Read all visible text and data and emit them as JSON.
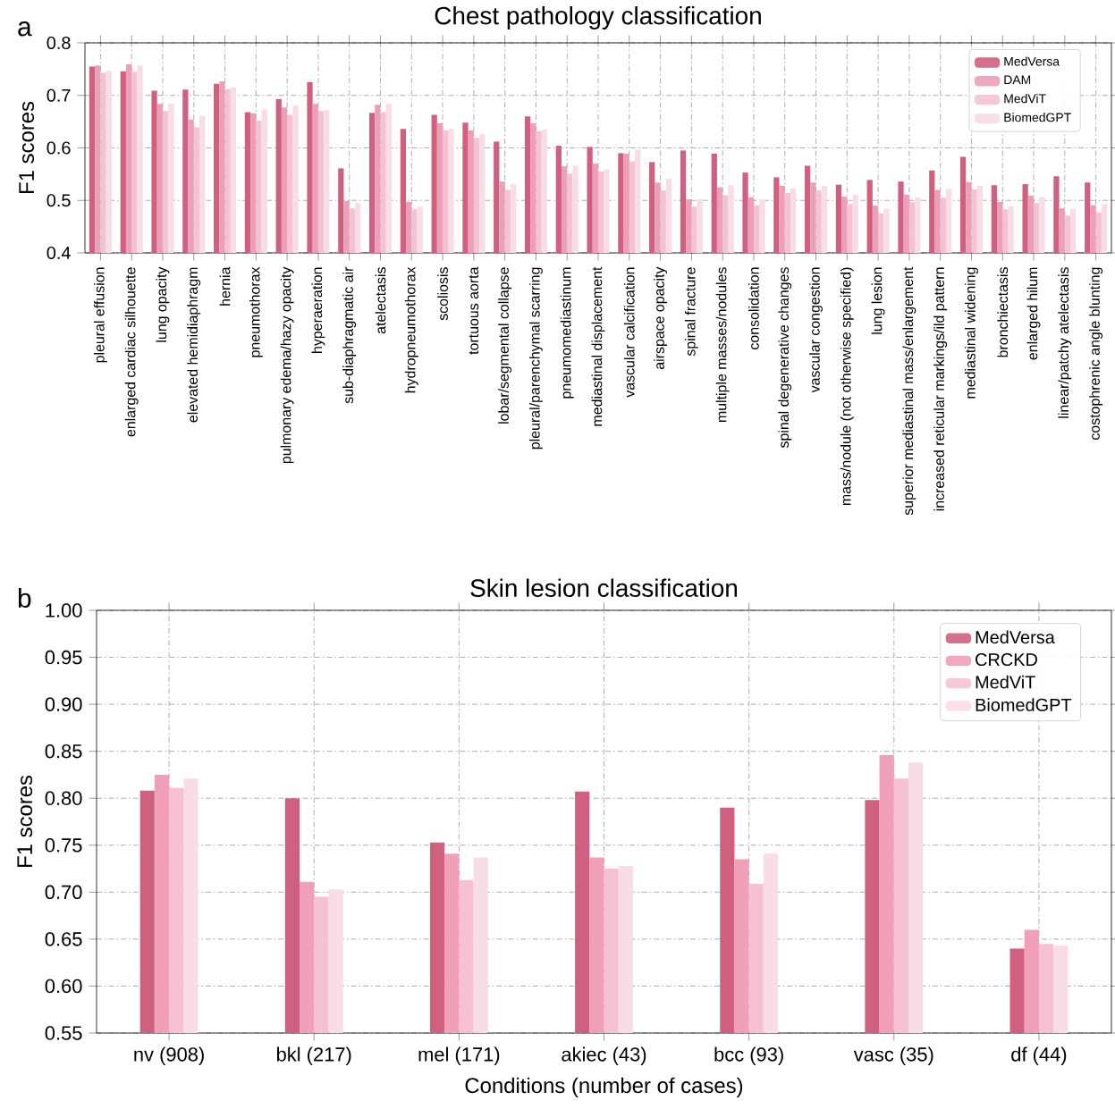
{
  "chart_data": [
    {
      "type": "bar",
      "title": "Chest pathology classification",
      "ylabel": "F1 scores",
      "annotations": [
        "a"
      ],
      "categories": [
        "pleural effusion",
        "enlarged cardiac silhouette",
        "lung opacity",
        "elevated hemidiaphragm",
        "hernia",
        "pneumothorax",
        "pulmonary edema/hazy opacity",
        "hyperaeration",
        "sub-diaphragmatic air",
        "atelectasis",
        "hydropneumothorax",
        "scoliosis",
        "tortuous aorta",
        "lobar/segmental collapse",
        "pleural/parenchymal scarring",
        "pneumomediastinum",
        "mediastinal displacement",
        "vascular calcification",
        "airspace opacity",
        "spinal fracture",
        "multiple masses/nodules",
        "consolidation",
        "spinal degenerative changes",
        "vascular congestion",
        "mass/nodule (not otherwise specified)",
        "lung lesion",
        "superior mediastinal mass/enlargement",
        "increased reticular markings/ild pattern",
        "mediastinal widening",
        "bronchiectasis",
        "enlarged hilum",
        "linear/patchy atelectasis",
        "costophrenic angle blunting"
      ],
      "series": [
        {
          "name": "MedVersa",
          "color": "#d06080",
          "values": [
            0.755,
            0.746,
            0.709,
            0.711,
            0.722,
            0.668,
            0.693,
            0.725,
            0.561,
            0.667,
            0.636,
            0.663,
            0.648,
            0.612,
            0.66,
            0.604,
            0.602,
            0.59,
            0.573,
            0.595,
            0.589,
            0.553,
            0.544,
            0.566,
            0.53,
            0.539,
            0.536,
            0.557,
            0.583,
            0.529,
            0.531,
            0.546,
            0.534
          ]
        },
        {
          "name": "DAM",
          "color": "#eb9fb8",
          "values": [
            0.757,
            0.759,
            0.684,
            0.654,
            0.727,
            0.666,
            0.677,
            0.684,
            0.499,
            0.682,
            0.497,
            0.647,
            0.633,
            0.536,
            0.647,
            0.565,
            0.57,
            0.589,
            0.534,
            0.502,
            0.525,
            0.506,
            0.528,
            0.534,
            0.507,
            0.49,
            0.511,
            0.52,
            0.535,
            0.497,
            0.509,
            0.485,
            0.491
          ]
        },
        {
          "name": "MedViT",
          "color": "#f3c3d4",
          "values": [
            0.743,
            0.745,
            0.67,
            0.639,
            0.712,
            0.652,
            0.663,
            0.67,
            0.485,
            0.668,
            0.483,
            0.633,
            0.619,
            0.52,
            0.632,
            0.551,
            0.555,
            0.574,
            0.519,
            0.488,
            0.51,
            0.491,
            0.514,
            0.519,
            0.493,
            0.475,
            0.497,
            0.505,
            0.521,
            0.483,
            0.495,
            0.471,
            0.477
          ]
        },
        {
          "name": "BiomedGPT",
          "color": "#f8dde6",
          "values": [
            0.747,
            0.757,
            0.684,
            0.661,
            0.715,
            0.673,
            0.681,
            0.672,
            0.495,
            0.684,
            0.488,
            0.636,
            0.626,
            0.531,
            0.635,
            0.566,
            0.559,
            0.596,
            0.541,
            0.503,
            0.529,
            0.502,
            0.523,
            0.528,
            0.511,
            0.484,
            0.506,
            0.522,
            0.528,
            0.489,
            0.506,
            0.484,
            0.493
          ]
        }
      ],
      "ylim": [
        0.4,
        0.8
      ],
      "yticks": [
        0.4,
        0.5,
        0.6,
        0.7,
        0.8
      ],
      "grid": true,
      "legend": "top right"
    },
    {
      "type": "bar",
      "title": "Skin lesion classification",
      "xlabel": "Conditions (number of cases)",
      "ylabel": "F1 scores",
      "annotations": [
        "b"
      ],
      "categories": [
        "nv (908)",
        "bkl (217)",
        "mel (171)",
        "akiec (43)",
        "bcc (93)",
        "vasc (35)",
        "df (44)"
      ],
      "series": [
        {
          "name": "MedVersa",
          "color": "#d06080",
          "values": [
            0.808,
            0.8,
            0.753,
            0.807,
            0.79,
            0.798,
            0.64
          ]
        },
        {
          "name": "CRCKD",
          "color": "#f0a0b8",
          "values": [
            0.825,
            0.711,
            0.741,
            0.737,
            0.735,
            0.846,
            0.66
          ]
        },
        {
          "name": "MedViT",
          "color": "#f6c2d3",
          "values": [
            0.811,
            0.695,
            0.713,
            0.725,
            0.709,
            0.821,
            0.645
          ]
        },
        {
          "name": "BiomedGPT",
          "color": "#f9dde6",
          "values": [
            0.821,
            0.703,
            0.737,
            0.728,
            0.741,
            0.838,
            0.643
          ]
        }
      ],
      "ylim": [
        0.55,
        1.0
      ],
      "yticks": [
        {
          "value": 0.55,
          "label": "0.55"
        },
        {
          "value": 0.6,
          "label": "0.60"
        },
        {
          "value": 0.65,
          "label": "0.65"
        },
        {
          "value": 0.7,
          "label": "0.70"
        },
        {
          "value": 0.75,
          "label": "0.75"
        },
        {
          "value": 0.8,
          "label": "0.80"
        },
        {
          "value": 0.85,
          "label": "0.85"
        },
        {
          "value": 0.9,
          "label": "0.90"
        },
        {
          "value": 0.95,
          "label": "0.95"
        },
        {
          "value": 1.0,
          "label": "1.00"
        }
      ],
      "grid": true,
      "legend": "top right"
    }
  ]
}
